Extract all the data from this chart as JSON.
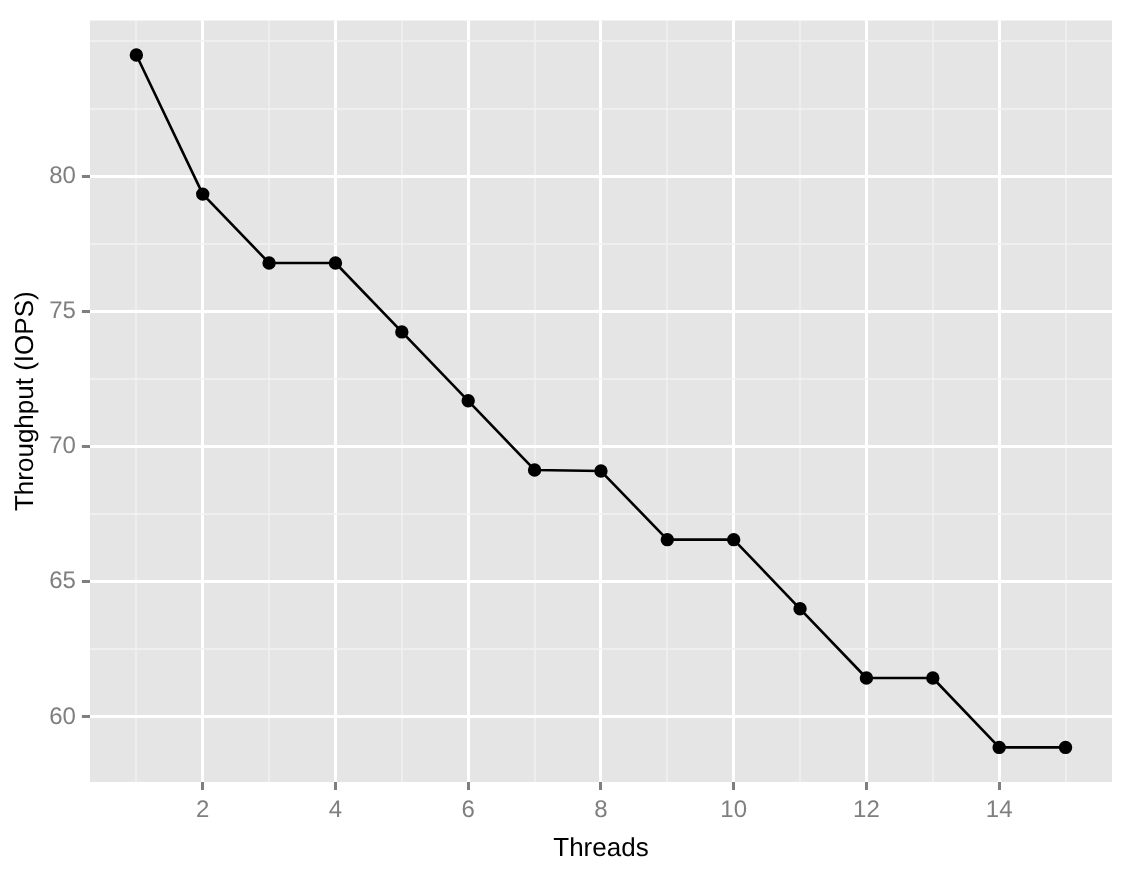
{
  "chart_data": {
    "type": "line",
    "xlabel": "Threads",
    "ylabel": "Throughput (IOPS)",
    "x": [
      1,
      2,
      3,
      4,
      5,
      6,
      7,
      8,
      9,
      10,
      11,
      12,
      13,
      14,
      15
    ],
    "series": [
      {
        "color": "#000000",
        "values": [
          84.5,
          79.35,
          76.8,
          76.8,
          74.25,
          71.7,
          69.14,
          69.1,
          66.56,
          66.56,
          64.0,
          61.44,
          61.44,
          58.87,
          58.87
        ]
      }
    ],
    "xlim": [
      0.3,
      15.7
    ],
    "xticks": [
      {
        "value": 1,
        "label": null
      },
      2,
      {
        "value": 3,
        "label": null
      },
      4,
      {
        "value": 5,
        "label": null
      },
      6,
      {
        "value": 7,
        "label": null
      },
      8,
      {
        "value": 9,
        "label": null
      },
      10,
      {
        "value": 11,
        "label": null
      },
      12,
      {
        "value": 13,
        "label": null
      },
      14,
      {
        "value": 15,
        "label": null
      }
    ],
    "ylim": [
      57.59,
      85.78
    ],
    "yticks": [
      60,
      {
        "value": 62.5,
        "label": null
      },
      65,
      {
        "value": 67.5,
        "label": null
      },
      70,
      {
        "value": 72.5,
        "label": null
      },
      75,
      {
        "value": 77.5,
        "label": null
      },
      80,
      {
        "value": 82.5,
        "label": null
      },
      {
        "value": 85,
        "label": null
      }
    ],
    "grid": true,
    "marker": "circle",
    "line_style": "solid",
    "legend": false
  }
}
